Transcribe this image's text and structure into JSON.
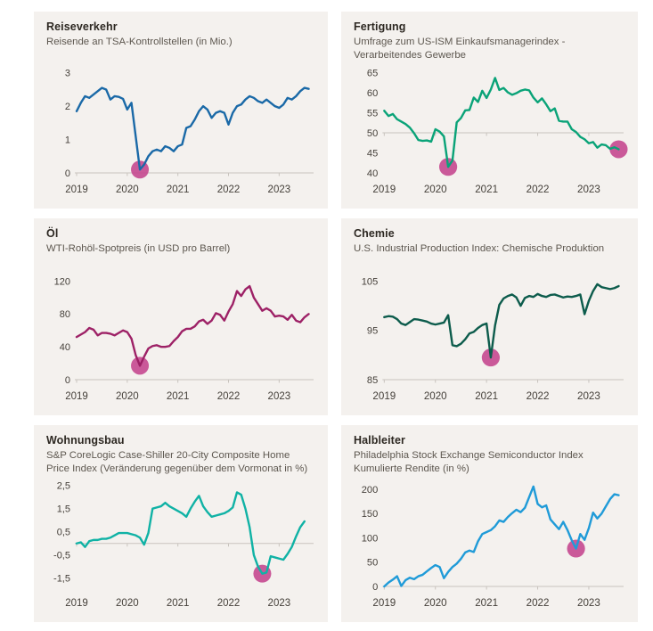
{
  "page": {
    "background": "#ffffff",
    "card_background": "#f4f1ee"
  },
  "colors": {
    "marker": "#c5488f",
    "axis": "#c9c4be",
    "tick_label": "#45403a",
    "title": "#2d2822",
    "subtitle": "#5d574f"
  },
  "chart_data": [
    {
      "type": "line",
      "title": "Reiseverkehr",
      "subtitle": "Reisende an TSA-Kontrollstellen (in Mio.)",
      "color": "#1a69a7",
      "x_start": 2019,
      "x_step": 0.0833333,
      "xlim": [
        2019,
        2023.68
      ],
      "ylim": [
        0,
        3.1
      ],
      "grid_y": 0,
      "xticks": [
        2019,
        2020,
        2021,
        2022,
        2023
      ],
      "xtick_labels": [
        "2019",
        "2020",
        "2021",
        "2022",
        "2023"
      ],
      "yticks": [
        0,
        1,
        2,
        3
      ],
      "ytick_labels": [
        "0",
        "1",
        "2",
        "3"
      ],
      "y": [
        1.85,
        2.1,
        2.3,
        2.25,
        2.35,
        2.45,
        2.55,
        2.5,
        2.2,
        2.3,
        2.28,
        2.22,
        1.9,
        2.1,
        1.1,
        0.1,
        0.25,
        0.5,
        0.65,
        0.7,
        0.65,
        0.8,
        0.75,
        0.65,
        0.8,
        0.85,
        1.35,
        1.4,
        1.6,
        1.85,
        2.0,
        1.9,
        1.65,
        1.8,
        1.85,
        1.8,
        1.45,
        1.8,
        2.0,
        2.05,
        2.2,
        2.3,
        2.25,
        2.15,
        2.1,
        2.2,
        2.1,
        2.0,
        1.95,
        2.05,
        2.25,
        2.2,
        2.3,
        2.45,
        2.55,
        2.52
      ],
      "markers": [
        {
          "x": 2020.25,
          "y": 0.1
        }
      ]
    },
    {
      "type": "line",
      "title": "Fertigung",
      "subtitle": "Umfrage zum US-ISM Einkaufsmanagerindex -\nVerarbeitendes Gewerbe",
      "color": "#0aa378",
      "x_start": 2019,
      "x_step": 0.0833333,
      "xlim": [
        2019,
        2023.68
      ],
      "ylim": [
        40,
        65.8
      ],
      "grid_y": 50,
      "xticks": [
        2019,
        2020,
        2021,
        2022,
        2023
      ],
      "xtick_labels": [
        "2019",
        "2020",
        "2021",
        "2022",
        "2023"
      ],
      "yticks": [
        40,
        45,
        50,
        55,
        60,
        65
      ],
      "ytick_labels": [
        "40",
        "45",
        "50",
        "55",
        "60",
        "65"
      ],
      "y": [
        55.5,
        54.2,
        54.7,
        53.4,
        52.8,
        52.2,
        51.3,
        49.9,
        48.2,
        48.0,
        48.1,
        47.8,
        50.9,
        50.3,
        49.1,
        41.5,
        43.1,
        52.6,
        53.7,
        55.6,
        55.7,
        58.8,
        57.7,
        60.5,
        58.7,
        60.8,
        63.7,
        60.7,
        61.2,
        60.1,
        59.5,
        59.9,
        60.5,
        60.8,
        60.6,
        58.8,
        57.6,
        58.6,
        57.1,
        55.4,
        56.1,
        53.0,
        52.8,
        52.8,
        50.9,
        50.2,
        49.0,
        48.4,
        47.4,
        47.7,
        46.3,
        47.1,
        46.9,
        46.0,
        46.4,
        45.9
      ],
      "markers": [
        {
          "x": 2020.25,
          "y": 41.5
        },
        {
          "x": 2023.583,
          "y": 45.9
        }
      ]
    },
    {
      "type": "line",
      "title": "Öl",
      "subtitle": "WTI-Rohöl-Spotpreis (in USD pro Barrel)",
      "color": "#9d2166",
      "x_start": 2019,
      "x_step": 0.0833333,
      "xlim": [
        2019,
        2023.68
      ],
      "ylim": [
        0,
        126
      ],
      "grid_y": 0,
      "xticks": [
        2019,
        2020,
        2021,
        2022,
        2023
      ],
      "xtick_labels": [
        "2019",
        "2020",
        "2021",
        "2022",
        "2023"
      ],
      "yticks": [
        0,
        40,
        80,
        120
      ],
      "ytick_labels": [
        "0",
        "40",
        "80",
        "120"
      ],
      "y": [
        52,
        55,
        58,
        63,
        61,
        54,
        57,
        57,
        56,
        54,
        57,
        60,
        58,
        50,
        30,
        17,
        28,
        38,
        41,
        42,
        40,
        40,
        41,
        47,
        52,
        59,
        62,
        62,
        65,
        71,
        73,
        68,
        72,
        81,
        79,
        72,
        83,
        92,
        108,
        102,
        110,
        114,
        100,
        92,
        84,
        87,
        84,
        77,
        78,
        77,
        73,
        79,
        72,
        70,
        76,
        80
      ],
      "markers": [
        {
          "x": 2020.25,
          "y": 17
        }
      ]
    },
    {
      "type": "line",
      "title": "Chemie",
      "subtitle": "U.S. Industrial Production Index: Chemische Produktion",
      "color": "#0d5c4c",
      "x_start": 2019,
      "x_step": 0.0833333,
      "xlim": [
        2019,
        2023.68
      ],
      "ylim": [
        85,
        106
      ],
      "grid_y": 85,
      "xticks": [
        2019,
        2020,
        2021,
        2022,
        2023
      ],
      "xtick_labels": [
        "2019",
        "2020",
        "2021",
        "2022",
        "2023"
      ],
      "yticks": [
        85,
        95,
        105
      ],
      "ytick_labels": [
        "85",
        "95",
        "105"
      ],
      "y": [
        97.7,
        97.9,
        97.8,
        97.3,
        96.4,
        96.1,
        96.7,
        97.3,
        97.2,
        97.0,
        96.8,
        96.4,
        96.2,
        96.4,
        96.6,
        98.1,
        92.0,
        91.8,
        92.3,
        93.2,
        94.4,
        94.7,
        95.5,
        96.1,
        96.4,
        89.5,
        96.0,
        100.2,
        101.5,
        102.0,
        102.3,
        101.7,
        100.0,
        101.6,
        102.0,
        101.8,
        102.4,
        102.0,
        101.8,
        102.2,
        102.3,
        102.0,
        101.7,
        101.9,
        101.8,
        102.0,
        102.3,
        98.3,
        101.0,
        103.0,
        104.4,
        103.8,
        103.6,
        103.4,
        103.6,
        104.0
      ],
      "markers": [
        {
          "x": 2021.083,
          "y": 89.5
        }
      ]
    },
    {
      "type": "line",
      "title": "Wohnungsbau",
      "subtitle": "S&P CoreLogic Case-Shiller 20-City Composite Home\nPrice Index (Veränderung gegenüber dem Vormonat in %)",
      "color": "#10b2a5",
      "x_start": 2019,
      "x_step": 0.0833333,
      "xlim": [
        2019,
        2023.68
      ],
      "ylim": [
        -1.85,
        2.6
      ],
      "grid_y": 0,
      "xticks": [
        2019,
        2020,
        2021,
        2022,
        2023
      ],
      "xtick_labels": [
        "2019",
        "2020",
        "2021",
        "2022",
        "2023"
      ],
      "yticks": [
        -1.5,
        -0.5,
        0.5,
        1.5,
        2.5
      ],
      "ytick_labels": [
        "-1,5",
        "-0,5",
        "0,5",
        "1,5",
        "2,5"
      ],
      "y": [
        0.0,
        0.05,
        -0.15,
        0.1,
        0.15,
        0.15,
        0.2,
        0.2,
        0.25,
        0.35,
        0.45,
        0.45,
        0.45,
        0.4,
        0.35,
        0.25,
        -0.05,
        0.45,
        1.5,
        1.55,
        1.6,
        1.75,
        1.6,
        1.5,
        1.4,
        1.3,
        1.15,
        1.5,
        1.8,
        2.05,
        1.6,
        1.35,
        1.15,
        1.2,
        1.25,
        1.3,
        1.4,
        1.55,
        2.2,
        2.1,
        1.5,
        0.7,
        -0.5,
        -1.0,
        -1.3,
        -1.25,
        -0.55,
        -0.6,
        -0.65,
        -0.7,
        -0.45,
        -0.15,
        0.3,
        0.7,
        0.95
      ],
      "markers": [
        {
          "x": 2022.667,
          "y": -1.3
        }
      ]
    },
    {
      "type": "line",
      "title": "Halbleiter",
      "subtitle": "Philadelphia Stock Exchange Semiconductor Index\nKumulierte Rendite (in %)",
      "color": "#209bd8",
      "x_start": 2019,
      "x_step": 0.0833333,
      "xlim": [
        2019,
        2023.68
      ],
      "ylim": [
        0,
        213
      ],
      "grid_y": 0,
      "xticks": [
        2019,
        2020,
        2021,
        2022,
        2023
      ],
      "xtick_labels": [
        "2019",
        "2020",
        "2021",
        "2022",
        "2023"
      ],
      "yticks": [
        0,
        50,
        100,
        150,
        200
      ],
      "ytick_labels": [
        "0",
        "50",
        "100",
        "150",
        "200"
      ],
      "y": [
        0,
        8,
        14,
        21,
        1,
        13,
        18,
        15,
        21,
        24,
        31,
        38,
        44,
        40,
        17,
        30,
        40,
        47,
        57,
        70,
        74,
        71,
        93,
        108,
        112,
        116,
        124,
        136,
        133,
        143,
        151,
        158,
        153,
        162,
        184,
        206,
        170,
        163,
        167,
        138,
        128,
        118,
        133,
        116,
        95,
        78,
        108,
        96,
        120,
        152,
        140,
        150,
        165,
        180,
        190,
        188
      ],
      "markers": [
        {
          "x": 2022.75,
          "y": 78
        }
      ]
    }
  ]
}
